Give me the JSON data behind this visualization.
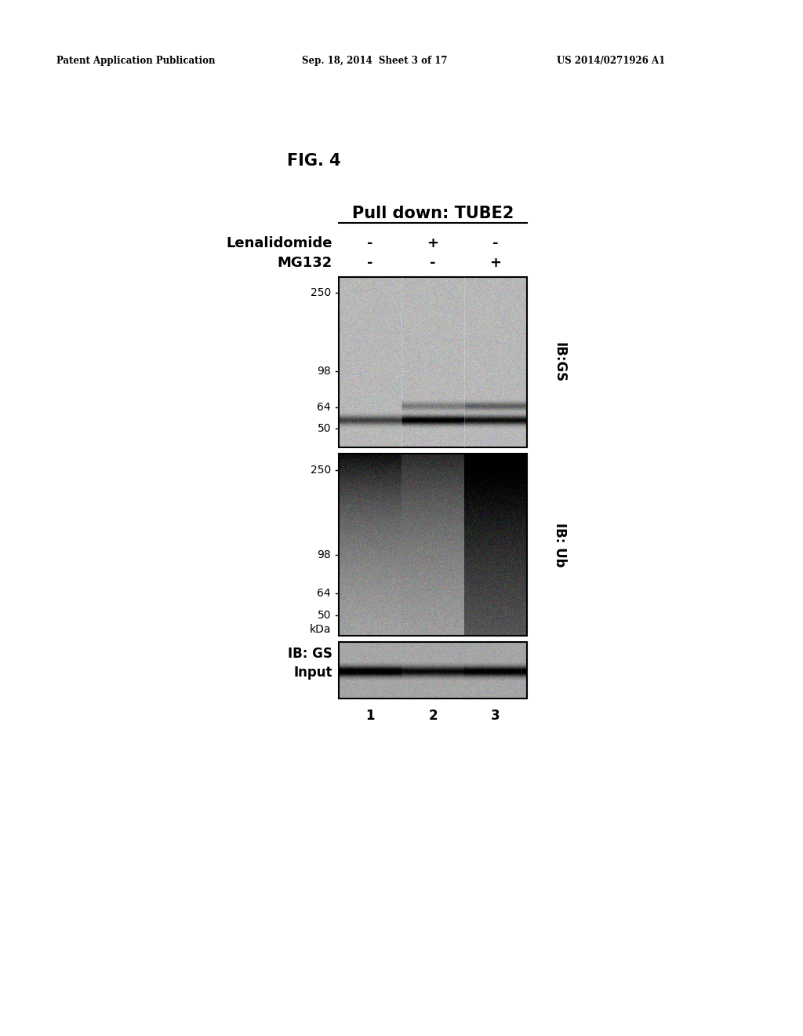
{
  "fig_label": "FIG. 4",
  "header_text": "Pull down: TUBE2",
  "row1_label": "Lenalidomide",
  "row2_label": "MG132",
  "row1_values": [
    "-",
    "+",
    "-"
  ],
  "row2_values": [
    "-",
    "-",
    "+"
  ],
  "panel1_label": "IB:GS",
  "panel2_label": "IB: Ub",
  "panel3_label": "IB: GS\nInput",
  "lane_numbers": [
    "1",
    "2",
    "3"
  ],
  "mw_markers_panel1": [
    250,
    98,
    64,
    50
  ],
  "mw_markers_panel2": [
    250,
    98,
    64,
    50
  ],
  "patent_left": "Patent Application Publication",
  "patent_mid": "Sep. 18, 2014  Sheet 3 of 17",
  "patent_right": "US 2014/0271926 A1",
  "bg_color": "#ffffff"
}
